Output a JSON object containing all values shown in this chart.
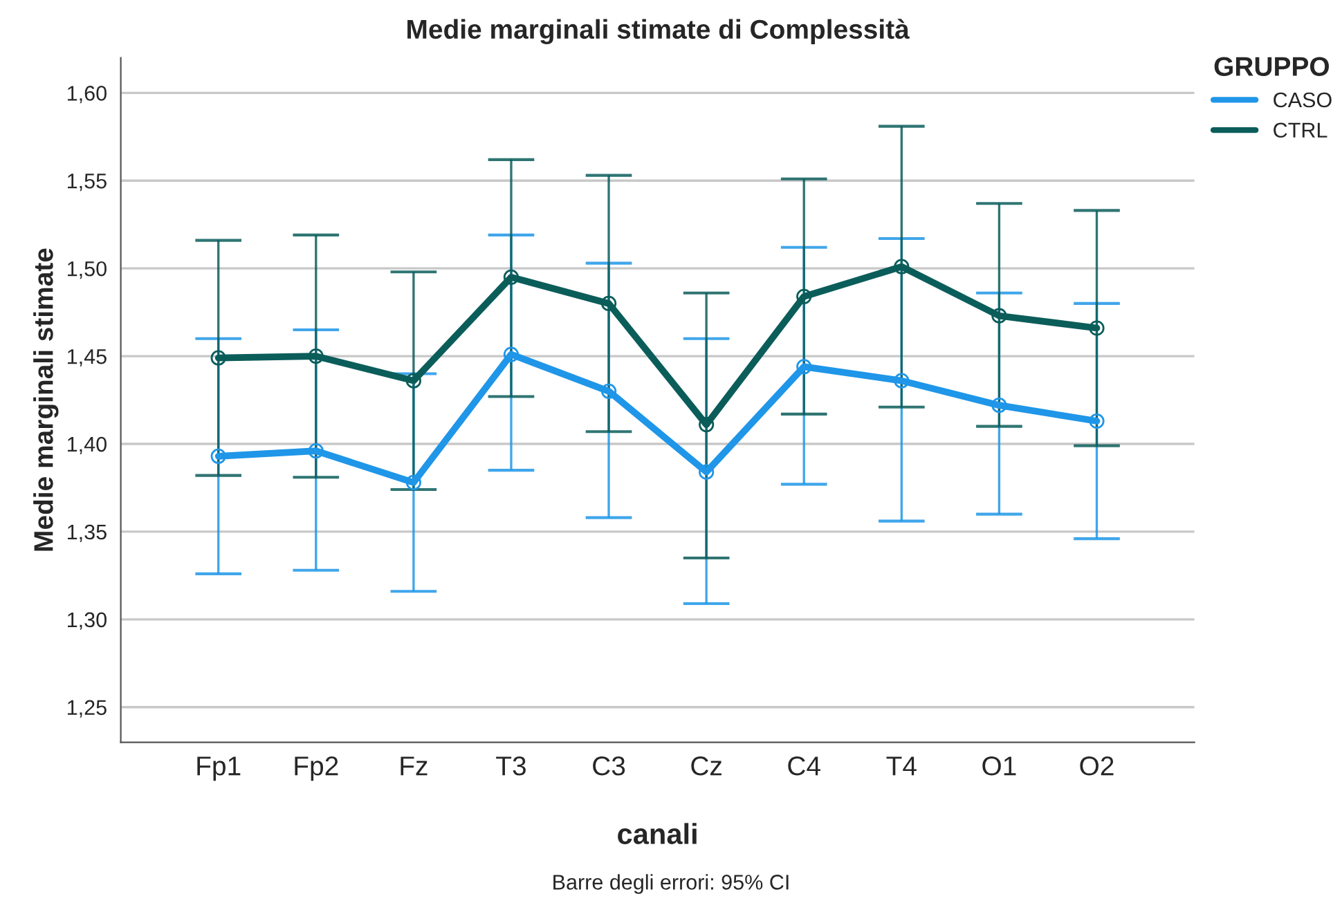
{
  "chart_data": {
    "type": "line",
    "title": "Medie marginali stimate di Complessità",
    "xlabel": "canali",
    "ylabel": "Medie marginali stimate",
    "legend_title": "GRUPPO",
    "categories": [
      "Fp1",
      "Fp2",
      "Fz",
      "T3",
      "C3",
      "Cz",
      "C4",
      "T4",
      "O1",
      "O2"
    ],
    "series": [
      {
        "name": "CASO",
        "color": "#1f96e8",
        "values": [
          1.393,
          1.396,
          1.378,
          1.451,
          1.43,
          1.384,
          1.444,
          1.436,
          1.422,
          1.413
        ],
        "errors": [
          [
            1.326,
            1.46
          ],
          [
            1.328,
            1.465
          ],
          [
            1.316,
            1.44
          ],
          [
            1.385,
            1.519
          ],
          [
            1.358,
            1.503
          ],
          [
            1.309,
            1.46
          ],
          [
            1.377,
            1.512
          ],
          [
            1.356,
            1.517
          ],
          [
            1.36,
            1.486
          ],
          [
            1.346,
            1.48
          ]
        ]
      },
      {
        "name": "CTRL",
        "color": "#0b5d5a",
        "values": [
          1.449,
          1.45,
          1.436,
          1.495,
          1.48,
          1.411,
          1.484,
          1.501,
          1.473,
          1.466
        ],
        "errors": [
          [
            1.382,
            1.516
          ],
          [
            1.381,
            1.519
          ],
          [
            1.374,
            1.498
          ],
          [
            1.427,
            1.562
          ],
          [
            1.407,
            1.553
          ],
          [
            1.335,
            1.486
          ],
          [
            1.417,
            1.551
          ],
          [
            1.421,
            1.581
          ],
          [
            1.41,
            1.537
          ],
          [
            1.399,
            1.533
          ]
        ]
      }
    ],
    "ylim": [
      1.23,
      1.62
    ],
    "yticks": [
      {
        "value": 1.25,
        "label": "1,25"
      },
      {
        "value": 1.3,
        "label": "1,30"
      },
      {
        "value": 1.35,
        "label": "1,35"
      },
      {
        "value": 1.4,
        "label": "1,40"
      },
      {
        "value": 1.45,
        "label": "1,45"
      },
      {
        "value": 1.5,
        "label": "1,50"
      },
      {
        "value": 1.55,
        "label": "1,55"
      },
      {
        "value": 1.6,
        "label": "1,60"
      }
    ],
    "grid": "y",
    "legend": "right",
    "marker": "circle",
    "line_style": "solid",
    "annotations": [
      "Barre degli errori: 95% CI"
    ]
  }
}
